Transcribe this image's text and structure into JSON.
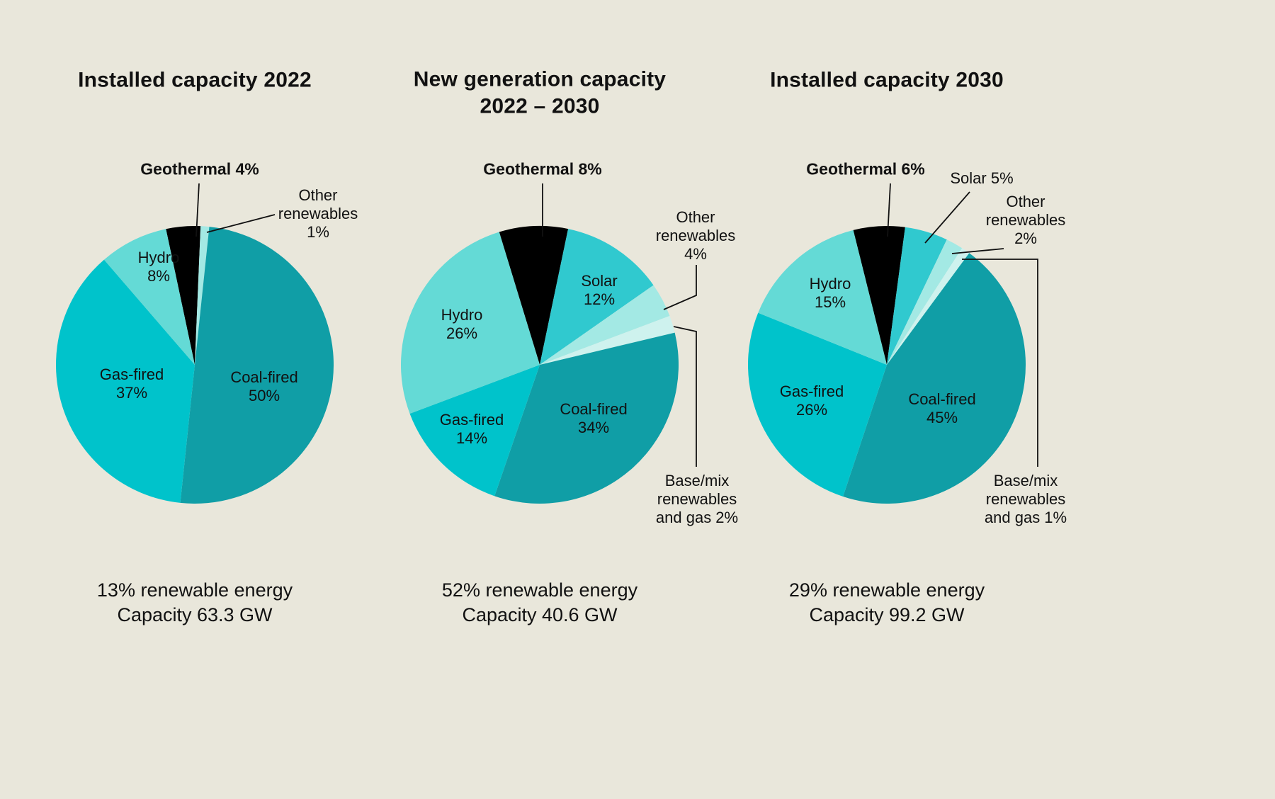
{
  "background": "#e9e7db",
  "text_color": "#111111",
  "charts": [
    {
      "title": "Installed capacity 2022",
      "labels": {
        "geothermal": "Geothermal 4%",
        "other_renewables": "Other\nrenewables\n1%",
        "hydro": "Hydro\n8%",
        "gas": "Gas-fired\n37%",
        "coal": "Coal-fired\n50%"
      },
      "caption": "13% renewable energy\nCapacity 63.3 GW"
    },
    {
      "title": "New generation capacity\n2022 – 2030",
      "labels": {
        "geothermal": "Geothermal 8%",
        "solar": "Solar\n12%",
        "other_renewables": "Other\nrenewables\n4%",
        "hydro": "Hydro\n26%",
        "gas": "Gas-fired\n14%",
        "coal": "Coal-fired\n34%",
        "base_mix": "Base/mix\nrenewables\nand gas 2%"
      },
      "caption": "52% renewable energy\nCapacity 40.6 GW"
    },
    {
      "title": "Installed capacity 2030",
      "labels": {
        "geothermal": "Geothermal 6%",
        "solar": "Solar 5%",
        "other_renewables": "Other\nrenewables\n2%",
        "hydro": "Hydro\n15%",
        "gas": "Gas-fired\n26%",
        "coal": "Coal-fired\n45%",
        "base_mix": "Base/mix\nrenewables\nand gas 1%"
      },
      "caption": "29% renewable energy\nCapacity 99.2 GW"
    }
  ],
  "chart_data": [
    {
      "type": "pie",
      "title": "Installed capacity 2022",
      "slices": [
        {
          "label": "Geothermal",
          "value": 4,
          "color": "#000000"
        },
        {
          "label": "Other renewables",
          "value": 1,
          "color": "#a3e9e4"
        },
        {
          "label": "Coal-fired",
          "value": 50,
          "color": "#109ea6"
        },
        {
          "label": "Gas-fired",
          "value": 37,
          "color": "#00c3cb"
        },
        {
          "label": "Hydro",
          "value": 8,
          "color": "#64dad6"
        }
      ],
      "start_angle_deg": -12,
      "annotations": [
        "13% renewable energy",
        "Capacity 63.3 GW"
      ]
    },
    {
      "type": "pie",
      "title": "New generation capacity 2022 – 2030",
      "slices": [
        {
          "label": "Geothermal",
          "value": 8,
          "color": "#000000"
        },
        {
          "label": "Solar",
          "value": 12,
          "color": "#30c9cf"
        },
        {
          "label": "Other renewables",
          "value": 4,
          "color": "#a3e9e4"
        },
        {
          "label": "Base/mix renewables and gas",
          "value": 2,
          "color": "#cef2ee"
        },
        {
          "label": "Coal-fired",
          "value": 34,
          "color": "#109ea6"
        },
        {
          "label": "Gas-fired",
          "value": 14,
          "color": "#00c3cb"
        },
        {
          "label": "Hydro",
          "value": 26,
          "color": "#64dad6"
        }
      ],
      "start_angle_deg": -17,
      "annotations": [
        "52% renewable energy",
        "Capacity 40.6 GW"
      ]
    },
    {
      "type": "pie",
      "title": "Installed capacity 2030",
      "slices": [
        {
          "label": "Geothermal",
          "value": 6,
          "color": "#000000"
        },
        {
          "label": "Solar",
          "value": 5,
          "color": "#30c9cf"
        },
        {
          "label": "Other renewables",
          "value": 2,
          "color": "#a3e9e4"
        },
        {
          "label": "Base/mix renewables and gas",
          "value": 1,
          "color": "#cef2ee"
        },
        {
          "label": "Coal-fired",
          "value": 45,
          "color": "#109ea6"
        },
        {
          "label": "Gas-fired",
          "value": 26,
          "color": "#00c3cb"
        },
        {
          "label": "Hydro",
          "value": 15,
          "color": "#64dad6"
        }
      ],
      "start_angle_deg": -14,
      "annotations": [
        "29% renewable energy",
        "Capacity 99.2 GW"
      ]
    }
  ]
}
